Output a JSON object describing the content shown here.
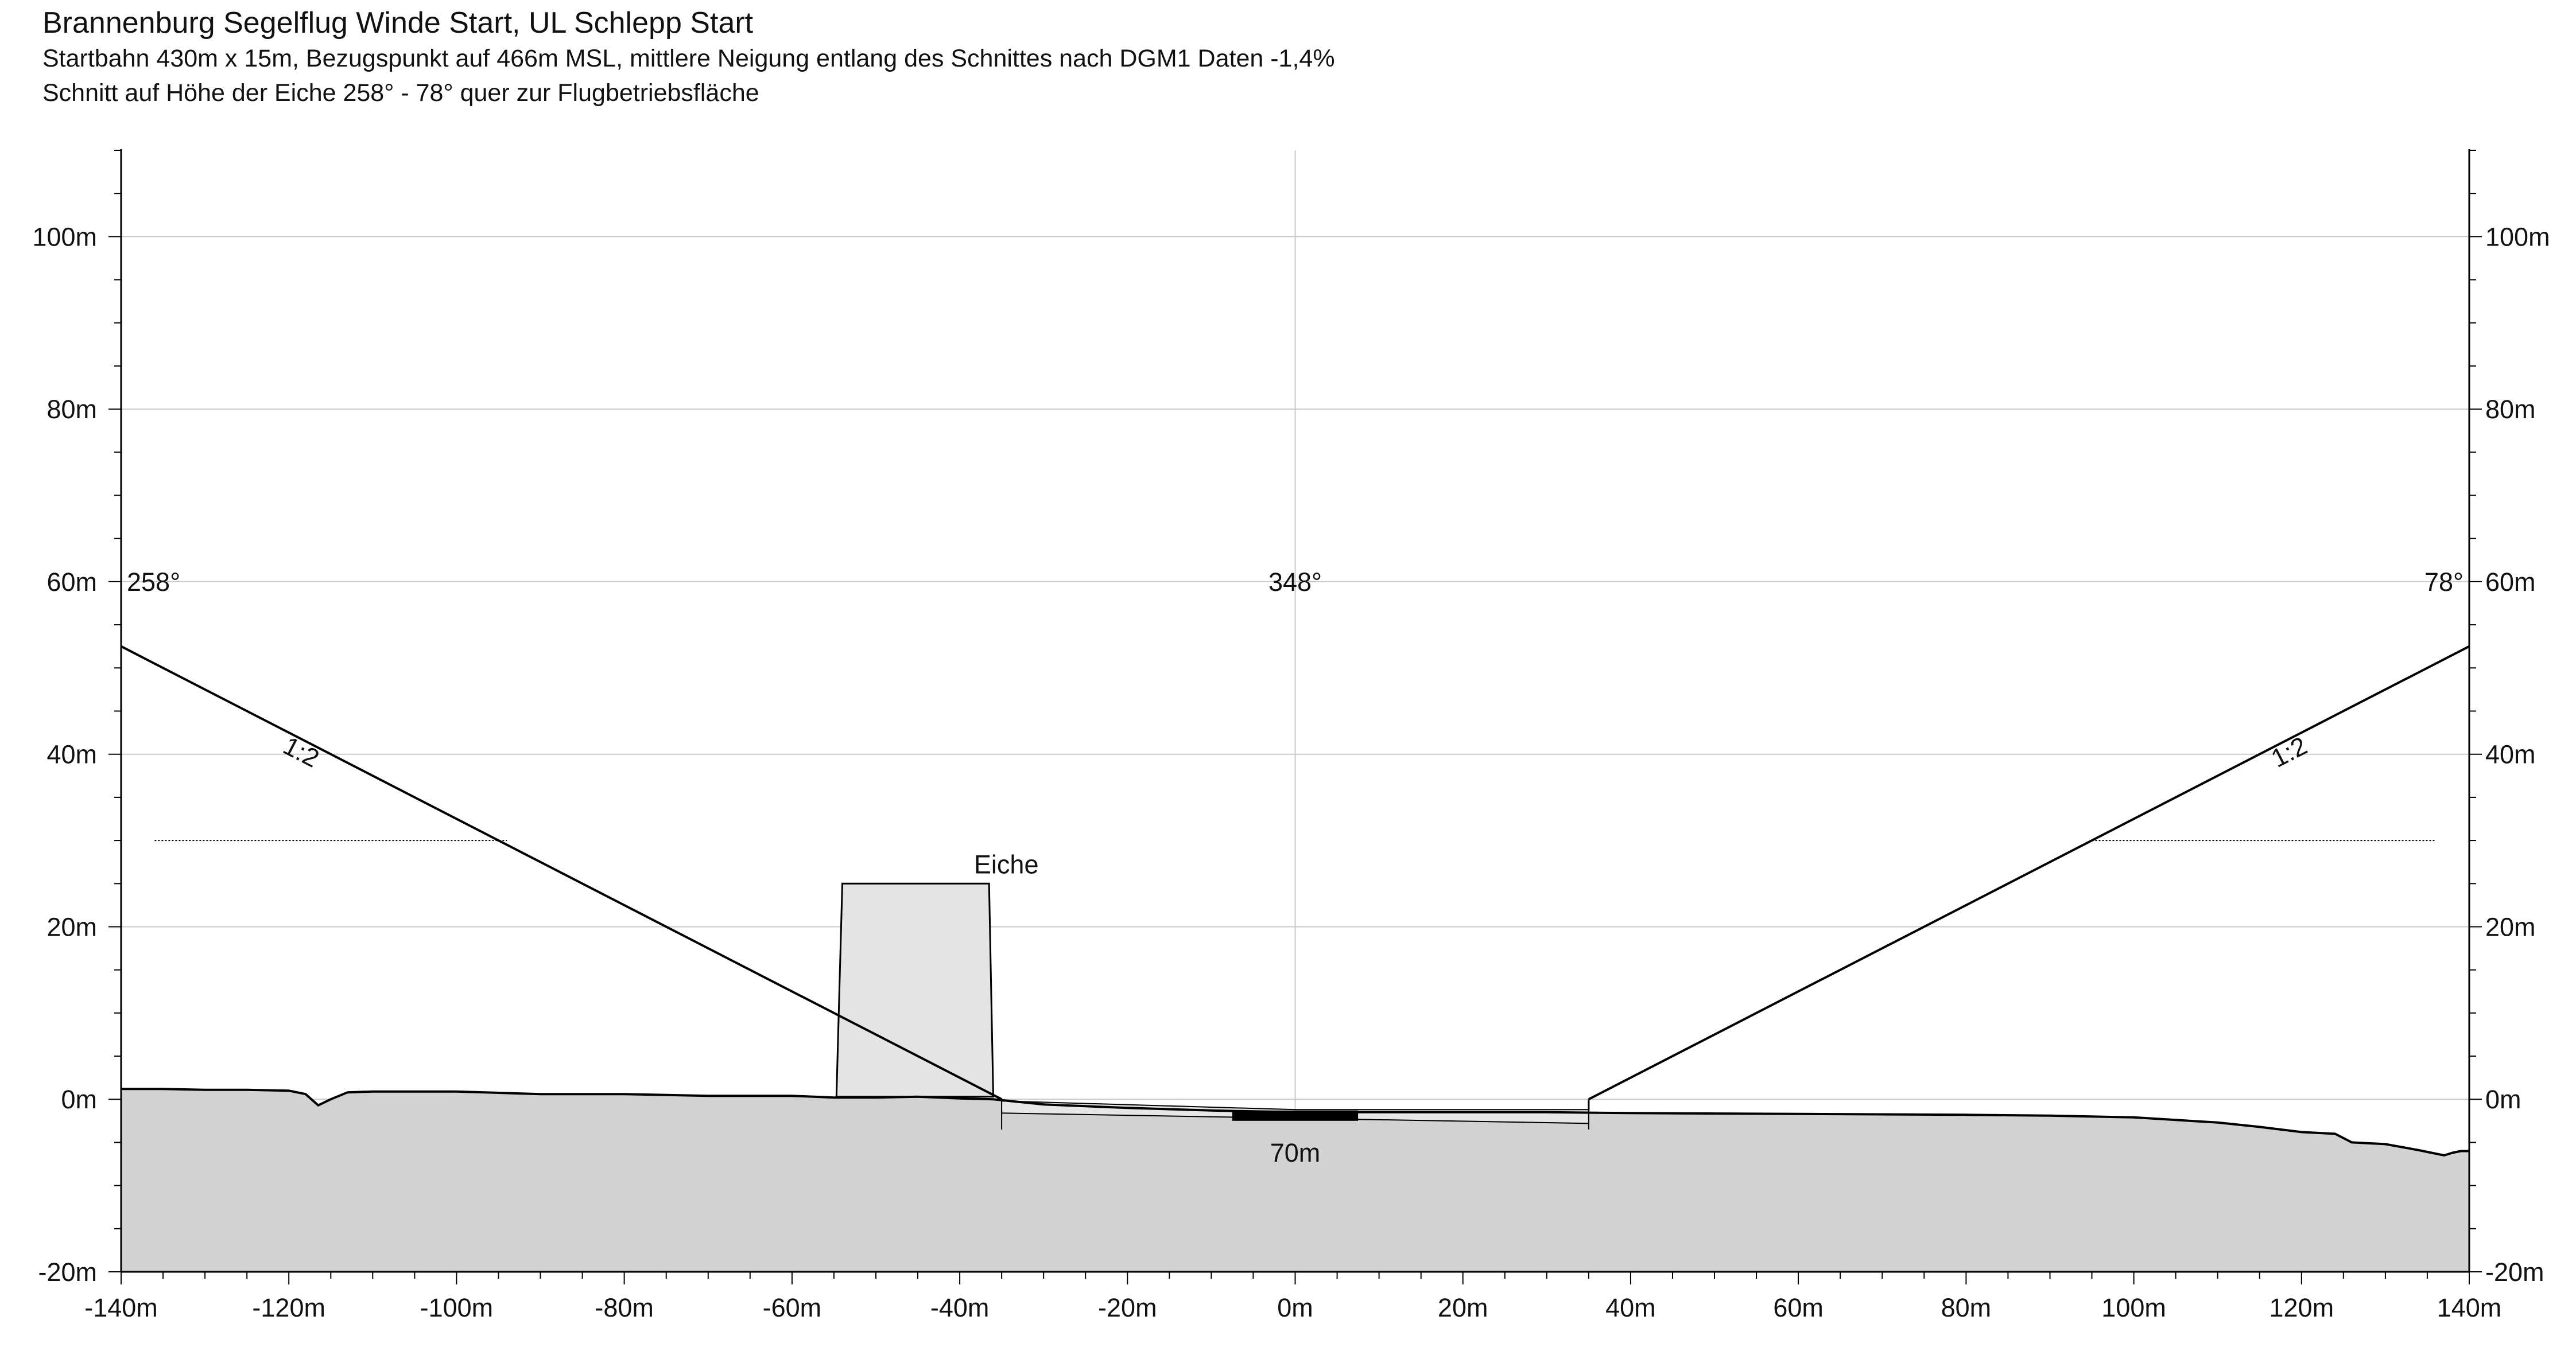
{
  "header": {
    "title": "Brannenburg Segelflug Winde Start, UL Schlepp Start",
    "subtitle1": "Startbahn 430m x 15m, Bezugspunkt auf 466m MSL, mittlere Neigung entlang des Schnittes nach DGM1 Daten -1,4%",
    "subtitle2": "Schnitt auf Höhe der Eiche 258° - 78° quer zur Flugbetriebsfläche"
  },
  "chart_data": {
    "type": "area",
    "xlim": [
      -140,
      140
    ],
    "ylim": [
      -20,
      110
    ],
    "grid": true,
    "colors": {
      "terrain": "#d2d2d2",
      "tree": "#e4e4e4",
      "runway_strip": "#e6e6e6",
      "runway": "#000000",
      "line": "#000000",
      "grid": "#c8c8c8"
    },
    "x_ticks": [
      -140,
      -120,
      -100,
      -80,
      -60,
      -40,
      -20,
      0,
      20,
      40,
      60,
      80,
      100,
      120,
      140
    ],
    "x_tick_labels": [
      "-140m",
      "-120m",
      "-100m",
      "-80m",
      "-60m",
      "-40m",
      "-20m",
      "0m",
      "20m",
      "40m",
      "60m",
      "80m",
      "100m",
      "120m",
      "140m"
    ],
    "y_ticks": [
      -20,
      0,
      20,
      40,
      60,
      80,
      100
    ],
    "y_tick_labels": [
      "-20m",
      "0m",
      "20m",
      "40m",
      "60m",
      "80m",
      "100m"
    ],
    "direction_labels": {
      "left": "258°",
      "center": "348°",
      "right": "78°"
    },
    "terrain_profile": [
      [
        -140,
        1.2
      ],
      [
        -135,
        1.2
      ],
      [
        -130,
        1.1
      ],
      [
        -125,
        1.1
      ],
      [
        -120,
        1.0
      ],
      [
        -118,
        0.6
      ],
      [
        -116.5,
        -0.7
      ],
      [
        -115,
        0.0
      ],
      [
        -113,
        0.8
      ],
      [
        -110,
        0.9
      ],
      [
        -100,
        0.9
      ],
      [
        -90,
        0.6
      ],
      [
        -80,
        0.6
      ],
      [
        -70,
        0.4
      ],
      [
        -60,
        0.4
      ],
      [
        -55,
        0.2
      ],
      [
        -50,
        0.2
      ],
      [
        -45,
        0.3
      ],
      [
        -40,
        0.1
      ],
      [
        -36,
        0.0
      ],
      [
        -30,
        -0.6
      ],
      [
        -20,
        -1.0
      ],
      [
        -10,
        -1.3
      ],
      [
        0,
        -1.5
      ],
      [
        10,
        -1.5
      ],
      [
        20,
        -1.5
      ],
      [
        30,
        -1.5
      ],
      [
        40,
        -1.6
      ],
      [
        60,
        -1.7
      ],
      [
        80,
        -1.8
      ],
      [
        90,
        -1.9
      ],
      [
        100,
        -2.1
      ],
      [
        110,
        -2.7
      ],
      [
        115,
        -3.2
      ],
      [
        120,
        -3.8
      ],
      [
        124,
        -4.0
      ],
      [
        126,
        -5.0
      ],
      [
        130,
        -5.2
      ],
      [
        134,
        -5.9
      ],
      [
        136,
        -6.3
      ],
      [
        137,
        -6.5
      ],
      [
        138,
        -6.2
      ],
      [
        139,
        -6.0
      ],
      [
        140,
        -6.0
      ]
    ],
    "obstacle": {
      "name": "Eiche",
      "polygon": [
        [
          -54.7,
          0.3
        ],
        [
          -54.0,
          25.0
        ],
        [
          -36.5,
          25.0
        ],
        [
          -36.0,
          0.3
        ]
      ]
    },
    "obstacle_clearance_line": {
      "y": 30,
      "segments": [
        [
          -136,
          -94
        ],
        [
          95,
          136
        ]
      ]
    },
    "runway_strip": {
      "width_label": "70m",
      "x_range": [
        -35,
        35
      ],
      "polygon": [
        [
          -35,
          -0.2
        ],
        [
          -35,
          -1.6
        ],
        [
          35,
          -2.8
        ],
        [
          35,
          -1.2
        ],
        [
          0,
          -1.2
        ]
      ]
    },
    "runway": {
      "x_range": [
        -7.5,
        7.5
      ],
      "y_range": [
        -2.5,
        -1.3
      ]
    },
    "slopes": [
      {
        "label": "1:2",
        "from": [
          -140,
          52.5
        ],
        "to": [
          -35,
          0.0
        ]
      },
      {
        "label": "1:2",
        "from": [
          35,
          0.0
        ],
        "to": [
          140,
          52.5
        ]
      }
    ],
    "strip_verticals": [
      {
        "x": 35,
        "y_from": 0.0,
        "y_to": -1.3
      }
    ]
  }
}
